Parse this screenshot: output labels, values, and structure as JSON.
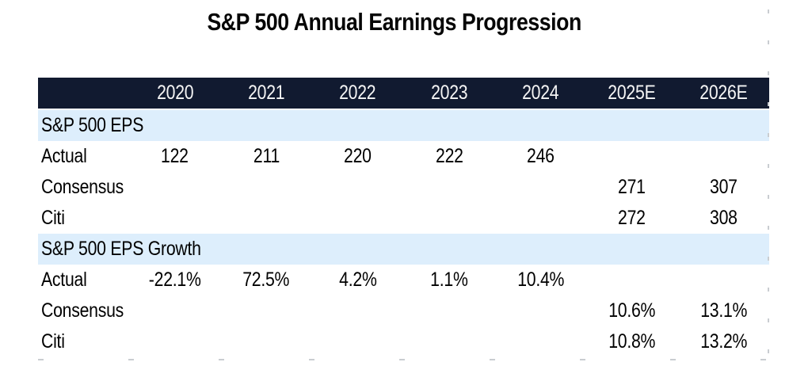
{
  "title": "S&P 500 Annual Earnings Progression",
  "colors": {
    "header_bg": "#111a30",
    "section_bg": "#ddeefc",
    "header_text": "#f5f5f5",
    "body_text": "#000000"
  },
  "table": {
    "year_headers": [
      "2020",
      "2021",
      "2022",
      "2023",
      "2024",
      "2025E",
      "2026E"
    ],
    "sections": [
      {
        "label": "S&P 500 EPS",
        "rows": [
          {
            "label": "Actual",
            "values": [
              "122",
              "211",
              "220",
              "222",
              "246",
              "",
              ""
            ]
          },
          {
            "label": "Consensus",
            "values": [
              "",
              "",
              "",
              "",
              "",
              "271",
              "307"
            ]
          },
          {
            "label": "Citi",
            "values": [
              "",
              "",
              "",
              "",
              "",
              "272",
              "308"
            ]
          }
        ]
      },
      {
        "label": "S&P 500 EPS Growth",
        "rows": [
          {
            "label": "Actual",
            "values": [
              "-22.1%",
              "72.5%",
              "4.2%",
              "1.1%",
              "10.4%",
              "",
              ""
            ]
          },
          {
            "label": "Consensus",
            "values": [
              "",
              "",
              "",
              "",
              "",
              "10.6%",
              "13.1%"
            ]
          },
          {
            "label": "Citi",
            "values": [
              "",
              "",
              "",
              "",
              "",
              "10.8%",
              "13.2%"
            ]
          }
        ]
      }
    ]
  },
  "chart_data": {
    "type": "table",
    "title": "S&P 500 Annual Earnings Progression",
    "columns": [
      "2020",
      "2021",
      "2022",
      "2023",
      "2024",
      "2025E",
      "2026E"
    ],
    "rows": [
      {
        "section": "S&P 500 EPS",
        "label": "Actual",
        "values": [
          122,
          211,
          220,
          222,
          246,
          null,
          null
        ]
      },
      {
        "section": "S&P 500 EPS",
        "label": "Consensus",
        "values": [
          null,
          null,
          null,
          null,
          null,
          271,
          307
        ]
      },
      {
        "section": "S&P 500 EPS",
        "label": "Citi",
        "values": [
          null,
          null,
          null,
          null,
          null,
          272,
          308
        ]
      },
      {
        "section": "S&P 500 EPS Growth",
        "label": "Actual",
        "values": [
          "-22.1%",
          "72.5%",
          "4.2%",
          "1.1%",
          "10.4%",
          null,
          null
        ]
      },
      {
        "section": "S&P 500 EPS Growth",
        "label": "Consensus",
        "values": [
          null,
          null,
          null,
          null,
          null,
          "10.6%",
          "13.1%"
        ]
      },
      {
        "section": "S&P 500 EPS Growth",
        "label": "Citi",
        "values": [
          null,
          null,
          null,
          null,
          null,
          "10.8%",
          "13.2%"
        ]
      }
    ]
  }
}
